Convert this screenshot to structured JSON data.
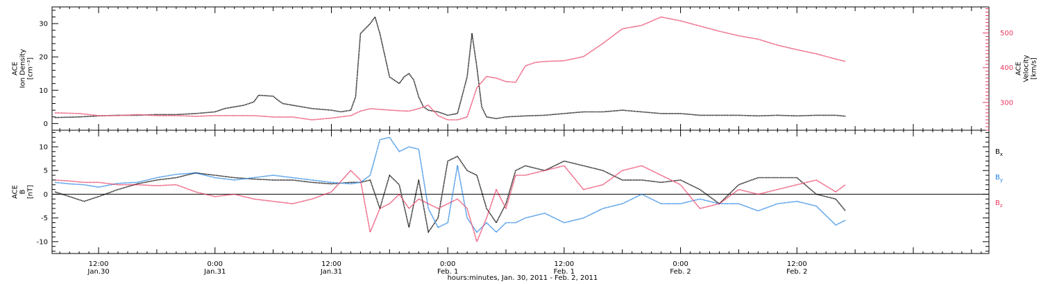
{
  "colors": {
    "black": "#000000",
    "blue": "#1e7fe0",
    "red": "#e8375e",
    "frame": "#000000"
  },
  "x_axis": {
    "title": "hours:minutes, Jan. 30, 2011 - Feb. 2, 2011",
    "range_hours": [
      -4.8,
      91.8
    ],
    "ticks": [
      {
        "hour": 0,
        "time": "12:00",
        "date": "Jan.30"
      },
      {
        "hour": 12,
        "time": "0:00",
        "date": "Jan.31"
      },
      {
        "hour": 24,
        "time": "12:00",
        "date": "Jan.31"
      },
      {
        "hour": 36,
        "time": "0:00",
        "date": "Feb. 1"
      },
      {
        "hour": 48,
        "time": "12:00",
        "date": "Feb. 1"
      },
      {
        "hour": 60,
        "time": "0:00",
        "date": "Feb. 2"
      },
      {
        "hour": 72,
        "time": "12:00",
        "date": "Feb. 2"
      }
    ]
  },
  "chart_data": [
    {
      "type": "line",
      "panel": "ion-density-velocity",
      "left_axis": {
        "label_lines": [
          "ACE",
          "Ion Density",
          "[cm⁻³]"
        ],
        "ylim": [
          -2,
          35
        ],
        "ticks": [
          0,
          10,
          20,
          30
        ]
      },
      "right_axis": {
        "label_lines": [
          "ACE",
          "Velocity",
          "[km/s]"
        ],
        "ylim": [
          220,
          575
        ],
        "ticks": [
          300,
          400,
          500
        ]
      },
      "series": [
        {
          "name": "",
          "axis": "left",
          "color": "black",
          "x": [
            -4.5,
            -2,
            0,
            2,
            4,
            6,
            8,
            10,
            12,
            13,
            15,
            16,
            16.5,
            18,
            18.5,
            19,
            20,
            22,
            24,
            25,
            26,
            26.5,
            27,
            28,
            28.5,
            29,
            30,
            31,
            31.5,
            32,
            32.5,
            33,
            33.5,
            34,
            35,
            35.5,
            36,
            37,
            38,
            38.5,
            39,
            39.5,
            40,
            41,
            42,
            44,
            46,
            48,
            50,
            52,
            54,
            56,
            58,
            60,
            62,
            64,
            66,
            68,
            70,
            72,
            74,
            76,
            77
          ],
          "y": [
            1.8,
            2,
            2.3,
            2.5,
            2.5,
            2.7,
            2.7,
            3,
            3.5,
            4.5,
            5.5,
            6.5,
            8.5,
            8.2,
            7,
            6,
            5.5,
            4.5,
            4,
            3.5,
            4,
            8,
            27,
            30,
            32,
            27,
            14,
            12,
            14,
            15,
            13,
            8,
            5,
            4,
            3.5,
            3,
            2.5,
            3,
            14,
            27,
            17,
            5,
            2,
            1.5,
            2,
            2.3,
            2.5,
            3,
            3.5,
            3.5,
            4,
            3.5,
            3,
            3,
            2.5,
            2.5,
            2.5,
            2.3,
            2.5,
            2.3,
            2.5,
            2.5,
            2.2
          ]
        },
        {
          "name": "",
          "axis": "right",
          "color": "red",
          "x": [
            -4.5,
            -2,
            0,
            2,
            4,
            6,
            8,
            10,
            12,
            14,
            16,
            18,
            20,
            22,
            24,
            26,
            27,
            28,
            29,
            30,
            31,
            32,
            33,
            34,
            35,
            36,
            37,
            38,
            39,
            40,
            41,
            42,
            43,
            44,
            45,
            46,
            48,
            50,
            52,
            54,
            56,
            58,
            60,
            62,
            64,
            66,
            68,
            70,
            72,
            74,
            76,
            77
          ],
          "y": [
            270,
            268,
            262,
            262,
            265,
            262,
            262,
            260,
            262,
            262,
            262,
            258,
            258,
            250,
            255,
            262,
            275,
            282,
            280,
            278,
            276,
            275,
            282,
            292,
            262,
            250,
            250,
            258,
            342,
            375,
            370,
            360,
            358,
            405,
            415,
            418,
            420,
            432,
            470,
            512,
            522,
            546,
            535,
            520,
            505,
            492,
            482,
            465,
            452,
            440,
            425,
            418
          ]
        }
      ]
    },
    {
      "type": "line",
      "panel": "magnetic-field",
      "left_axis": {
        "label_lines": [
          "ACE",
          "B",
          "[nT]"
        ],
        "ylim": [
          -12.5,
          13.5
        ],
        "ticks": [
          -10,
          -5,
          0,
          5,
          10
        ]
      },
      "legend": [
        {
          "label": "B",
          "sub": "x",
          "color": "black"
        },
        {
          "label": "B",
          "sub": "y",
          "color": "blue"
        },
        {
          "label": "B",
          "sub": "z",
          "color": "red"
        }
      ],
      "series": [
        {
          "name": "Bx",
          "color": "black",
          "x": [
            -4.5,
            -3,
            -1.5,
            0,
            2,
            4,
            6,
            8,
            10,
            12,
            14,
            16,
            18,
            20,
            22,
            24,
            26,
            27,
            28,
            29,
            30,
            31,
            32,
            33,
            34,
            35,
            36,
            37,
            38,
            39,
            40,
            41,
            42,
            43,
            44,
            46,
            48,
            50,
            52,
            54,
            56,
            58,
            60,
            62,
            64,
            66,
            68,
            70,
            72,
            74,
            76,
            77
          ],
          "y": [
            0.5,
            -0.5,
            -1.5,
            -0.5,
            1,
            2.2,
            3,
            3.5,
            4.5,
            4,
            3.5,
            3.2,
            3,
            3,
            2.5,
            2.2,
            2.5,
            2.5,
            3,
            -3,
            4,
            2,
            -7,
            3,
            -8,
            -5,
            7,
            8,
            5,
            4,
            -3,
            -6,
            -2,
            5,
            6,
            5,
            7,
            6,
            5,
            3,
            3,
            2.5,
            3,
            1,
            -2,
            2,
            3.5,
            3.5,
            3.5,
            0,
            -1,
            -3.5
          ]
        },
        {
          "name": "By",
          "color": "blue",
          "x": [
            -4.5,
            -3,
            -1.5,
            0,
            2,
            4,
            6,
            8,
            10,
            12,
            14,
            16,
            18,
            20,
            22,
            24,
            26,
            27,
            28,
            29,
            30,
            31,
            32,
            33,
            34,
            35,
            36,
            37,
            38,
            39,
            40,
            41,
            42,
            43,
            44,
            46,
            48,
            50,
            52,
            54,
            56,
            58,
            60,
            62,
            64,
            66,
            68,
            70,
            72,
            74,
            76,
            77
          ],
          "y": [
            2.5,
            2.2,
            2,
            1.5,
            2.3,
            2.5,
            3.5,
            4.2,
            4.5,
            3.5,
            3,
            3.5,
            4,
            3.5,
            3,
            2.5,
            2.2,
            2.5,
            4,
            11.5,
            12,
            9,
            10,
            9.5,
            -3,
            -7,
            -6,
            6,
            -5,
            -8,
            -6,
            -8,
            -6,
            -6,
            -5,
            -4,
            -6,
            -5,
            -3,
            -2,
            0,
            -2,
            -2,
            -1,
            -2,
            -2,
            -3.5,
            -2,
            -1.5,
            -2.5,
            -6.5,
            -5.5
          ]
        },
        {
          "name": "Bz",
          "color": "red",
          "x": [
            -4.5,
            -3,
            -1.5,
            0,
            2,
            4,
            6,
            8,
            10,
            12,
            14,
            16,
            18,
            20,
            22,
            24,
            26,
            27,
            28,
            29,
            30,
            31,
            32,
            33,
            34,
            35,
            36,
            37,
            38,
            39,
            40,
            41,
            42,
            43,
            44,
            46,
            48,
            50,
            52,
            54,
            56,
            58,
            60,
            62,
            64,
            66,
            68,
            70,
            72,
            74,
            76,
            77
          ],
          "y": [
            3,
            2.8,
            2.5,
            2.5,
            2,
            2,
            1.8,
            2,
            0.5,
            -0.5,
            0,
            -1,
            -1.5,
            -2,
            -1,
            0.5,
            5,
            3,
            -8,
            -3,
            -2,
            0,
            -3,
            -1,
            -2,
            -3,
            -2,
            -1,
            -3,
            -10,
            -5,
            1,
            -3,
            4,
            4,
            5,
            6,
            1,
            2,
            5,
            6,
            4,
            2,
            -3,
            -2,
            1,
            0,
            1,
            2,
            3,
            0.5,
            2
          ]
        }
      ]
    }
  ]
}
